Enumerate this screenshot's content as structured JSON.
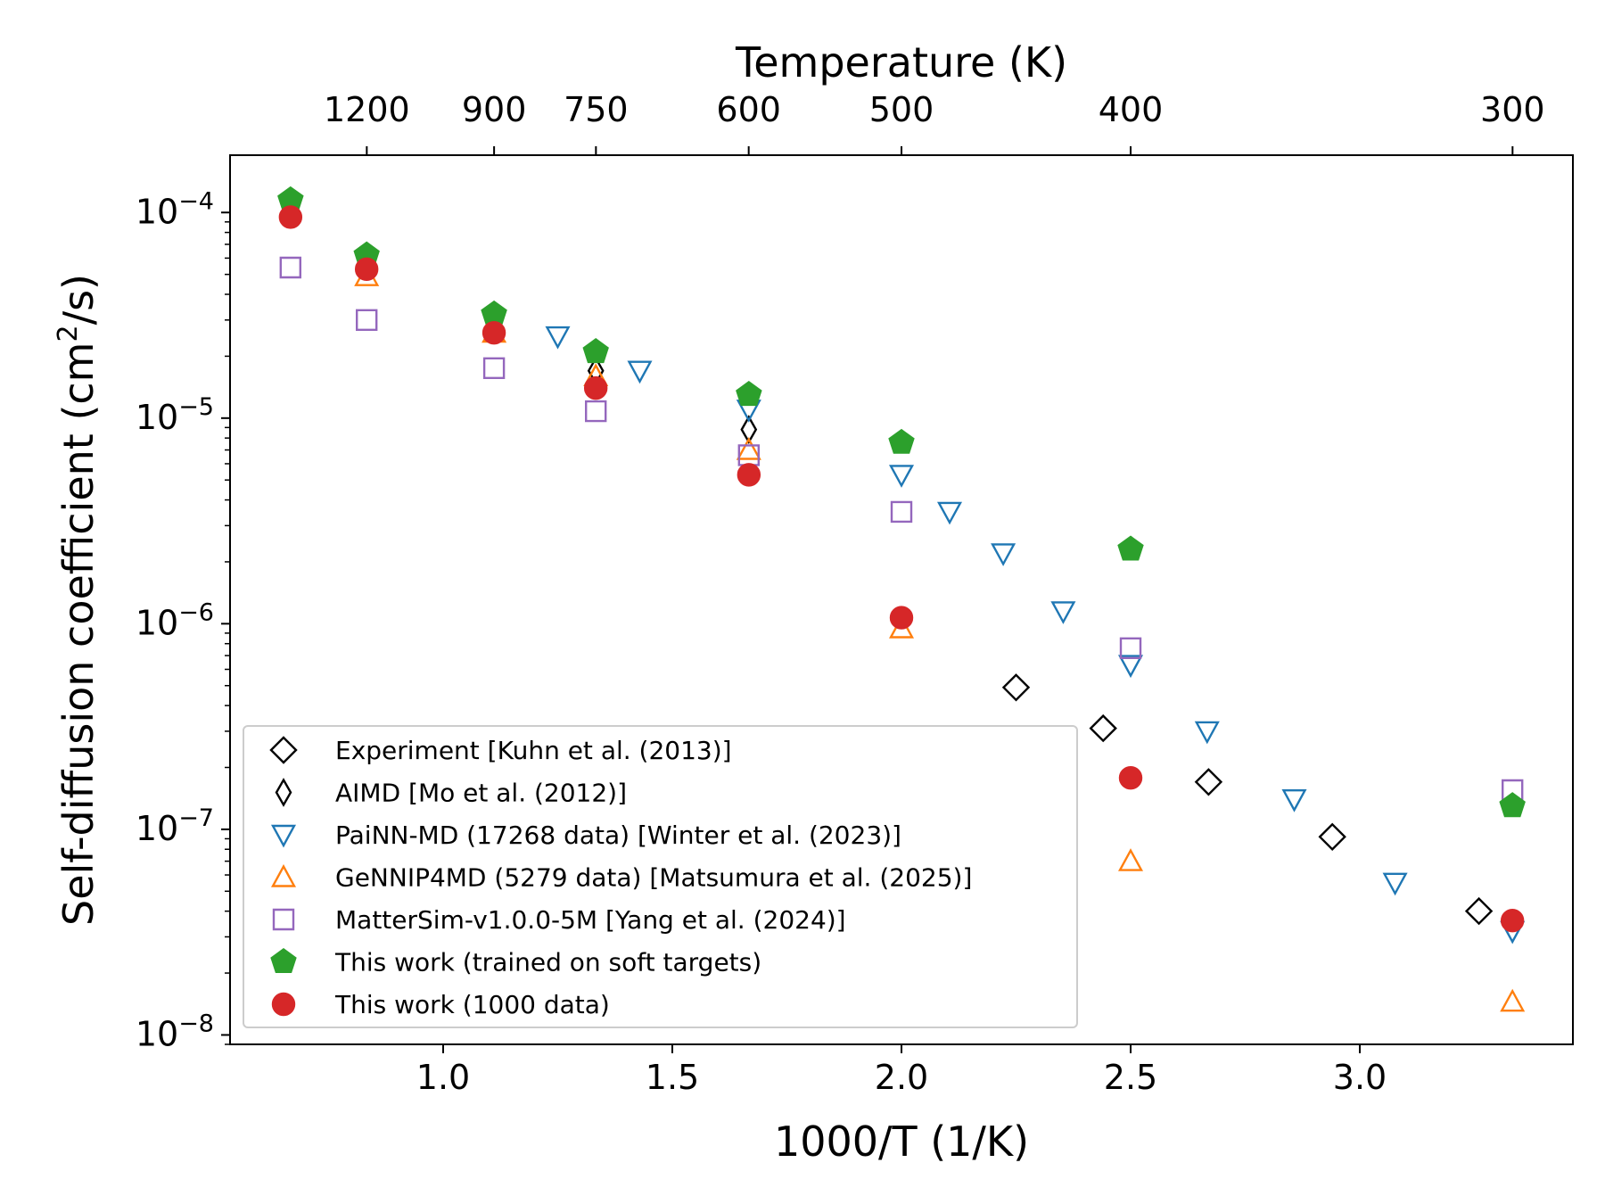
{
  "chart_data": {
    "type": "scatter",
    "xlabel": "1000/T (1/K)",
    "ylabel_main": "Self-diffusion coefficient (cm",
    "ylabel_sup": "2",
    "ylabel_end": "/s)",
    "top_xlabel": "Temperature (K)",
    "yscale": "log",
    "xlim": [
      0.535,
      3.465
    ],
    "ylim": [
      9e-09,
      0.00019
    ],
    "x_ticks": [
      1.0,
      1.5,
      2.0,
      2.5,
      3.0
    ],
    "x_tick_labels": [
      "1.0",
      "1.5",
      "2.0",
      "2.5",
      "3.0"
    ],
    "y_ticks": [
      1e-08,
      1e-07,
      1e-06,
      1e-05,
      0.0001
    ],
    "y_tick_bases": [
      "10",
      "10",
      "10",
      "10",
      "10"
    ],
    "y_tick_exps": [
      "−8",
      "−7",
      "−6",
      "−5",
      "−4"
    ],
    "top_ticks": [
      1200,
      900,
      750,
      600,
      500,
      400,
      300
    ],
    "top_tick_labels": [
      "1200",
      "900",
      "750",
      "600",
      "500",
      "400",
      "300"
    ],
    "legend_position": "lower-left",
    "series": [
      {
        "name": "Experiment [Kuhn et al. (2013)]",
        "marker": "diamond",
        "color": "#000000",
        "filled": false,
        "x": [
          2.25,
          2.44,
          2.67,
          2.94,
          3.26
        ],
        "y": [
          4.9e-07,
          3.1e-07,
          1.7e-07,
          9.2e-08,
          4e-08
        ]
      },
      {
        "name": "AIMD [Mo et al. (2012)]",
        "marker": "thin_diamond",
        "color": "#000000",
        "filled": false,
        "x": [
          0.667,
          0.833,
          1.111,
          1.333,
          1.667
        ],
        "y": [
          0.000105,
          5.5e-05,
          3.1e-05,
          1.7e-05,
          8.8e-06
        ]
      },
      {
        "name": "PaiNN-MD (17268 data) [Winter et al. (2023)]",
        "marker": "triangle_down",
        "color": "#1f77b4",
        "filled": false,
        "x": [
          1.25,
          1.429,
          1.667,
          2.0,
          2.105,
          2.222,
          2.353,
          2.5,
          2.667,
          2.857,
          3.077,
          3.333
        ],
        "y": [
          2.5e-05,
          1.7e-05,
          1.1e-05,
          5.3e-06,
          3.5e-06,
          2.2e-06,
          1.15e-06,
          6.3e-07,
          3e-07,
          1.4e-07,
          5.5e-08,
          3.2e-08
        ]
      },
      {
        "name": "GeNNIP4MD (5279 data) [Matsumura et al. (2025)]",
        "marker": "triangle_up",
        "color": "#ff7f0e",
        "filled": false,
        "x": [
          0.833,
          1.111,
          1.333,
          1.667,
          2.0,
          2.5,
          3.333
        ],
        "y": [
          4.9e-05,
          2.6e-05,
          1.6e-05,
          7e-06,
          9.5e-07,
          7e-08,
          1.45e-08
        ]
      },
      {
        "name": "MatterSim-v1.0.0-5M [Yang et al. (2024)]",
        "marker": "square",
        "color": "#9467bd",
        "filled": false,
        "x": [
          0.667,
          0.833,
          1.111,
          1.333,
          1.667,
          2.0,
          2.5,
          3.333
        ],
        "y": [
          5.4e-05,
          3e-05,
          1.75e-05,
          1.08e-05,
          6.6e-06,
          3.5e-06,
          7.6e-07,
          1.55e-07
        ]
      },
      {
        "name": "This work (trained on soft targets)",
        "marker": "pentagon",
        "color": "#2ca02c",
        "filled": true,
        "x": [
          0.667,
          0.833,
          1.111,
          1.333,
          1.667,
          2.0,
          2.5,
          3.333
        ],
        "y": [
          0.000115,
          6.2e-05,
          3.2e-05,
          2.1e-05,
          1.3e-05,
          7.6e-06,
          2.3e-06,
          1.3e-07
        ]
      },
      {
        "name": "This work (1000 data)",
        "marker": "circle",
        "color": "#d62728",
        "filled": true,
        "x": [
          0.667,
          0.833,
          1.111,
          1.333,
          1.667,
          2.0,
          2.5,
          3.333
        ],
        "y": [
          9.5e-05,
          5.3e-05,
          2.6e-05,
          1.4e-05,
          5.3e-06,
          1.07e-06,
          1.78e-07,
          3.6e-08
        ]
      }
    ]
  }
}
